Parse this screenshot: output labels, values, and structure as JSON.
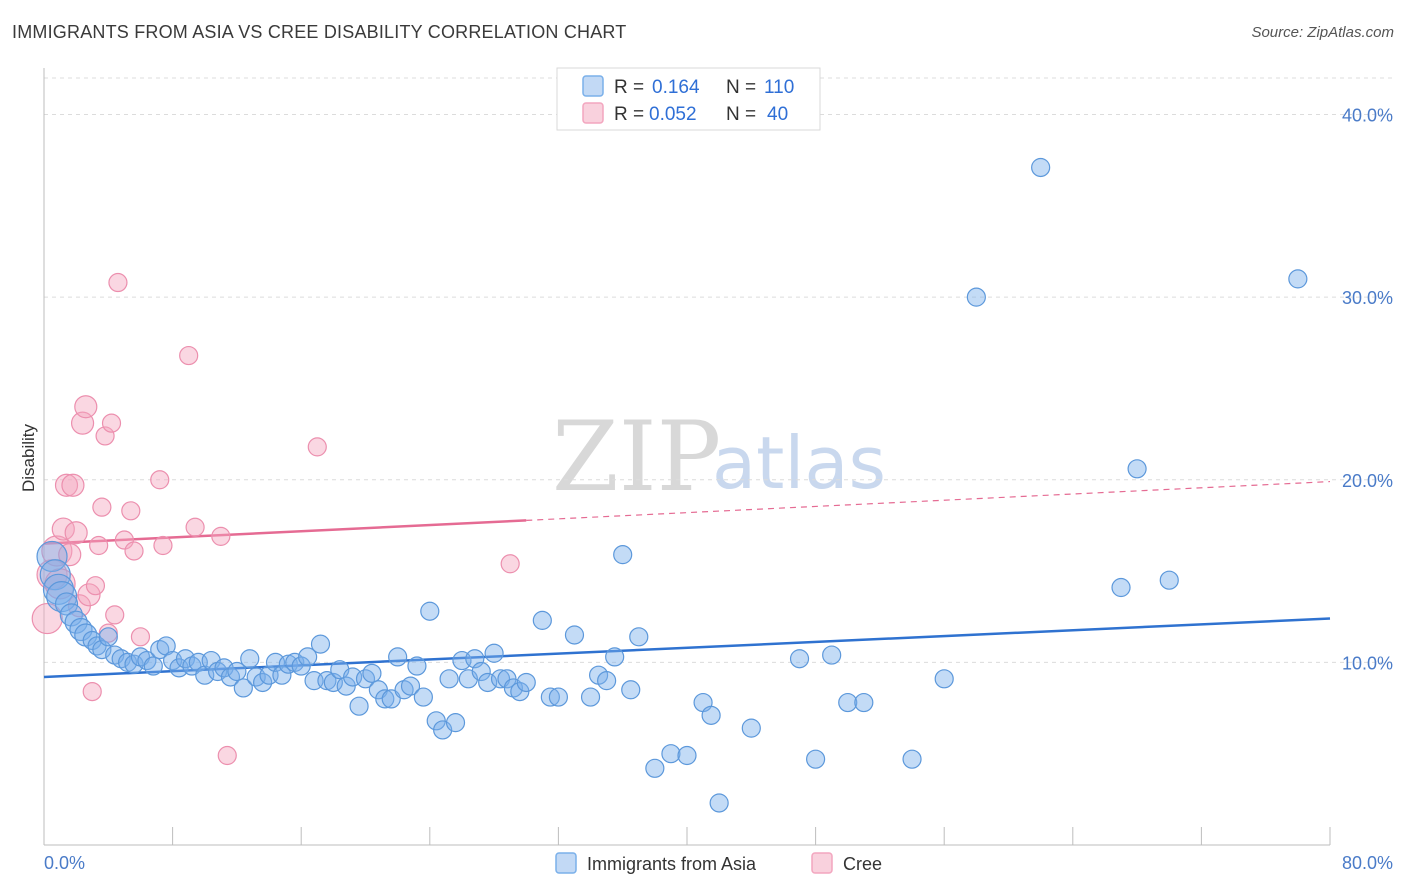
{
  "header": {
    "title": "IMMIGRANTS FROM ASIA VS CREE DISABILITY CORRELATION CHART",
    "source": "Source: ZipAtlas.com"
  },
  "watermark": {
    "zip": "ZIP",
    "atlas": "atlas"
  },
  "legend": {
    "rows": [
      {
        "r_label": "R =",
        "r_value": "0.164",
        "n_label": "N =",
        "n_value": "110"
      },
      {
        "r_label": "R =",
        "r_value": "0.052",
        "n_label": "N =",
        "n_value": "40"
      }
    ]
  },
  "chart_data": {
    "type": "scatter",
    "xlabel": "",
    "ylabel": "Disability",
    "xlim": [
      0,
      80
    ],
    "ylim": [
      0,
      42
    ],
    "x_tick_labels": [
      "0.0%",
      "80.0%"
    ],
    "y_ticks": [
      10,
      20,
      30,
      40
    ],
    "y_tick_labels": [
      "10.0%",
      "20.0%",
      "30.0%",
      "40.0%"
    ],
    "grid": true,
    "legend_position": "top-center",
    "colors": {
      "asia": "#7ab0ea",
      "asia_line": "#2f72d0",
      "cree": "#f3a6bf",
      "cree_line": "#e56b93"
    },
    "series": [
      {
        "name": "Immigrants from Asia",
        "color": "#7ab0ea",
        "trend": {
          "x": [
            0,
            80
          ],
          "y": [
            9.2,
            12.4
          ],
          "dashed_from": null
        },
        "points": [
          [
            0.5,
            15.8
          ],
          [
            0.7,
            14.8
          ],
          [
            0.9,
            14.0
          ],
          [
            1.1,
            13.6
          ],
          [
            1.4,
            13.2
          ],
          [
            1.7,
            12.6
          ],
          [
            2.0,
            12.2
          ],
          [
            2.3,
            11.8
          ],
          [
            2.6,
            11.5
          ],
          [
            3.0,
            11.2
          ],
          [
            3.3,
            10.9
          ],
          [
            3.6,
            10.7
          ],
          [
            4.0,
            11.4
          ],
          [
            4.4,
            10.4
          ],
          [
            4.8,
            10.2
          ],
          [
            5.2,
            10.0
          ],
          [
            5.6,
            9.9
          ],
          [
            6.0,
            10.3
          ],
          [
            6.4,
            10.1
          ],
          [
            6.8,
            9.8
          ],
          [
            7.2,
            10.7
          ],
          [
            7.6,
            10.9
          ],
          [
            8.0,
            10.1
          ],
          [
            8.4,
            9.7
          ],
          [
            8.8,
            10.2
          ],
          [
            9.2,
            9.8
          ],
          [
            9.6,
            10.0
          ],
          [
            10.0,
            9.3
          ],
          [
            10.4,
            10.1
          ],
          [
            10.8,
            9.5
          ],
          [
            11.2,
            9.7
          ],
          [
            11.6,
            9.2
          ],
          [
            12.0,
            9.5
          ],
          [
            12.4,
            8.6
          ],
          [
            12.8,
            10.2
          ],
          [
            13.2,
            9.2
          ],
          [
            13.6,
            8.9
          ],
          [
            14.0,
            9.3
          ],
          [
            14.4,
            10.0
          ],
          [
            14.8,
            9.3
          ],
          [
            15.2,
            9.9
          ],
          [
            15.6,
            10.0
          ],
          [
            16.0,
            9.8
          ],
          [
            16.4,
            10.3
          ],
          [
            16.8,
            9.0
          ],
          [
            17.2,
            11.0
          ],
          [
            17.6,
            9.0
          ],
          [
            18.0,
            8.9
          ],
          [
            18.4,
            9.6
          ],
          [
            18.8,
            8.7
          ],
          [
            19.2,
            9.2
          ],
          [
            19.6,
            7.6
          ],
          [
            20.0,
            9.1
          ],
          [
            20.4,
            9.4
          ],
          [
            20.8,
            8.5
          ],
          [
            21.2,
            8.0
          ],
          [
            21.6,
            8.0
          ],
          [
            22.0,
            10.3
          ],
          [
            22.4,
            8.5
          ],
          [
            22.8,
            8.7
          ],
          [
            23.2,
            9.8
          ],
          [
            23.6,
            8.1
          ],
          [
            24.0,
            12.8
          ],
          [
            24.4,
            6.8
          ],
          [
            24.8,
            6.3
          ],
          [
            25.2,
            9.1
          ],
          [
            25.6,
            6.7
          ],
          [
            26.0,
            10.1
          ],
          [
            26.4,
            9.1
          ],
          [
            26.8,
            10.2
          ],
          [
            27.2,
            9.5
          ],
          [
            27.6,
            8.9
          ],
          [
            28.0,
            10.5
          ],
          [
            28.4,
            9.1
          ],
          [
            28.8,
            9.1
          ],
          [
            29.2,
            8.6
          ],
          [
            29.6,
            8.4
          ],
          [
            30.0,
            8.9
          ],
          [
            31.0,
            12.3
          ],
          [
            31.5,
            8.1
          ],
          [
            32.0,
            8.1
          ],
          [
            33.0,
            11.5
          ],
          [
            34.0,
            8.1
          ],
          [
            34.5,
            9.3
          ],
          [
            35.0,
            9.0
          ],
          [
            35.5,
            10.3
          ],
          [
            36.0,
            15.9
          ],
          [
            36.5,
            8.5
          ],
          [
            37.0,
            11.4
          ],
          [
            38.0,
            4.2
          ],
          [
            39.0,
            5.0
          ],
          [
            40.0,
            4.9
          ],
          [
            41.0,
            7.8
          ],
          [
            41.5,
            7.1
          ],
          [
            42.0,
            2.3
          ],
          [
            44.0,
            6.4
          ],
          [
            47.0,
            10.2
          ],
          [
            48.0,
            4.7
          ],
          [
            49.0,
            10.4
          ],
          [
            50.0,
            7.8
          ],
          [
            51.0,
            7.8
          ],
          [
            54.0,
            4.7
          ],
          [
            56.0,
            9.1
          ],
          [
            58.0,
            30.0
          ],
          [
            62.0,
            37.1
          ],
          [
            67.0,
            14.1
          ],
          [
            68.0,
            20.6
          ],
          [
            70.0,
            14.5
          ],
          [
            78.0,
            31.0
          ]
        ]
      },
      {
        "name": "Cree",
        "color": "#f3a6bf",
        "trend": {
          "x": [
            0,
            80
          ],
          "y": [
            16.5,
            19.9
          ],
          "solid_until_x": 30
        },
        "points": [
          [
            0.2,
            12.4
          ],
          [
            0.5,
            14.8
          ],
          [
            0.8,
            16.1
          ],
          [
            1.0,
            14.3
          ],
          [
            1.2,
            17.3
          ],
          [
            1.4,
            19.7
          ],
          [
            1.6,
            15.9
          ],
          [
            1.8,
            19.7
          ],
          [
            2.0,
            17.1
          ],
          [
            2.2,
            13.1
          ],
          [
            2.4,
            23.1
          ],
          [
            2.6,
            24.0
          ],
          [
            2.8,
            13.7
          ],
          [
            3.0,
            8.4
          ],
          [
            3.2,
            14.2
          ],
          [
            3.4,
            16.4
          ],
          [
            3.6,
            18.5
          ],
          [
            3.8,
            22.4
          ],
          [
            4.0,
            11.6
          ],
          [
            4.2,
            23.1
          ],
          [
            4.4,
            12.6
          ],
          [
            4.6,
            30.8
          ],
          [
            5.0,
            16.7
          ],
          [
            5.4,
            18.3
          ],
          [
            5.6,
            16.1
          ],
          [
            6.0,
            11.4
          ],
          [
            7.2,
            20.0
          ],
          [
            7.4,
            16.4
          ],
          [
            9.0,
            26.8
          ],
          [
            9.4,
            17.4
          ],
          [
            11.0,
            16.9
          ],
          [
            11.4,
            4.9
          ],
          [
            17.0,
            21.8
          ],
          [
            29.0,
            15.4
          ]
        ]
      }
    ]
  },
  "bottom_legend": {
    "items": [
      {
        "label": "Immigrants from Asia",
        "color": "#7ab0ea"
      },
      {
        "label": "Cree",
        "color": "#f3a6bf"
      }
    ]
  }
}
